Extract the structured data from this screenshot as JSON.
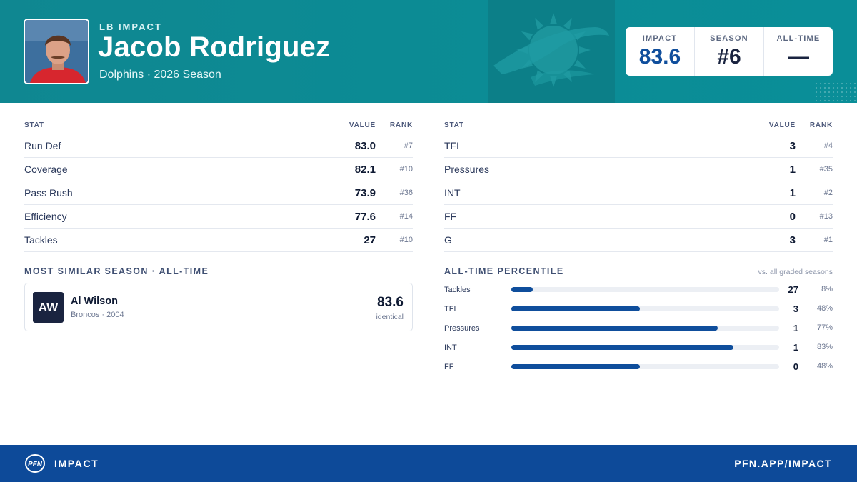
{
  "header": {
    "position_label": "LB IMPACT",
    "player_name": "Jacob Rodriguez",
    "team_season": "Dolphins · 2026 Season",
    "colors": {
      "teal": "#0c8b94",
      "navy_blue": "#0f4e9c"
    }
  },
  "score_card": [
    {
      "label": "IMPACT",
      "value": "83.6"
    },
    {
      "label": "SEASON",
      "value": "#6"
    },
    {
      "label": "ALL-TIME",
      "value": "—"
    }
  ],
  "stats_left": {
    "headers": [
      "STAT",
      "VALUE",
      "RANK"
    ],
    "rows": [
      {
        "stat": "Run Def",
        "value": "83.0",
        "rank": "#7"
      },
      {
        "stat": "Coverage",
        "value": "82.1",
        "rank": "#10"
      },
      {
        "stat": "Pass Rush",
        "value": "73.9",
        "rank": "#36"
      },
      {
        "stat": "Efficiency",
        "value": "77.6",
        "rank": "#14"
      },
      {
        "stat": "Tackles",
        "value": "27",
        "rank": "#10"
      }
    ]
  },
  "stats_right": {
    "headers": [
      "STAT",
      "VALUE",
      "RANK"
    ],
    "rows": [
      {
        "stat": "TFL",
        "value": "3",
        "rank": "#4"
      },
      {
        "stat": "Pressures",
        "value": "1",
        "rank": "#35"
      },
      {
        "stat": "INT",
        "value": "1",
        "rank": "#2"
      },
      {
        "stat": "FF",
        "value": "0",
        "rank": "#13"
      },
      {
        "stat": "G",
        "value": "3",
        "rank": "#1"
      }
    ]
  },
  "similar": {
    "title": "MOST SIMILAR SEASON · ALL-TIME",
    "initials": "AW",
    "name": "Al Wilson",
    "subtitle": "Broncos · 2004",
    "score": "83.6",
    "tag": "identical"
  },
  "percentile": {
    "title": "ALL-TIME PERCENTILE",
    "note": "vs. all graded seasons",
    "rows": [
      {
        "label": "Tackles",
        "value": "27",
        "pct_text": "8%",
        "pct": 8
      },
      {
        "label": "TFL",
        "value": "3",
        "pct_text": "48%",
        "pct": 48
      },
      {
        "label": "Pressures",
        "value": "1",
        "pct_text": "77%",
        "pct": 77
      },
      {
        "label": "INT",
        "value": "1",
        "pct_text": "83%",
        "pct": 83
      },
      {
        "label": "FF",
        "value": "0",
        "pct_text": "48%",
        "pct": 48
      }
    ]
  },
  "footer": {
    "logo_text": "PFN",
    "brand": "IMPACT",
    "url": "PFN.APP/IMPACT"
  }
}
